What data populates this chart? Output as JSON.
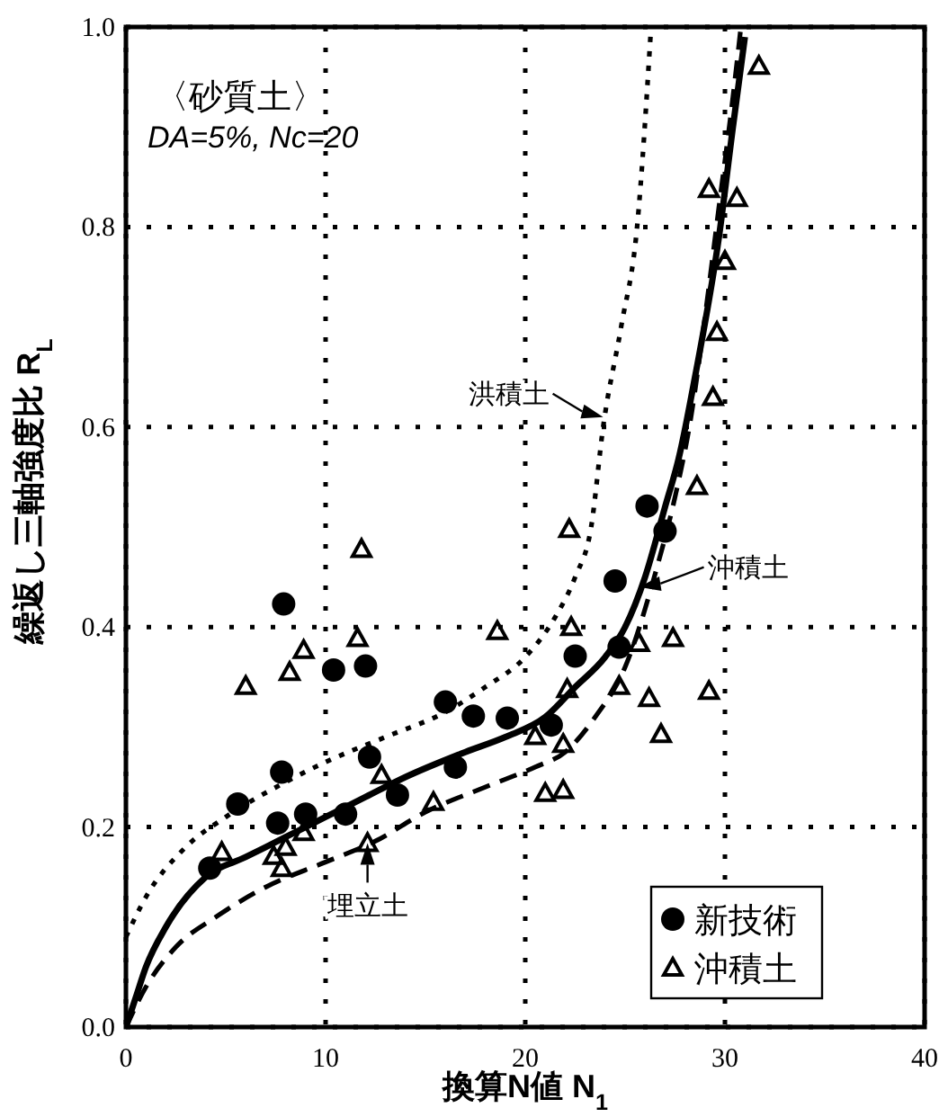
{
  "chart_data": {
    "type": "scatter",
    "xlabel": "換算N値 N$_{1}$",
    "ylabel": "繰返し三軸強度比 R$_{L}$",
    "xlim": [
      0,
      40
    ],
    "ylim": [
      0,
      1
    ],
    "xticks": [
      0,
      10,
      20,
      30,
      40
    ],
    "yticks": [
      {
        "value": 0,
        "label": "0.0"
      },
      {
        "value": 0.2,
        "label": "0.2"
      },
      {
        "value": 0.4,
        "label": "0.4"
      },
      {
        "value": 0.6,
        "label": "0.6"
      },
      {
        "value": 0.8,
        "label": "0.8"
      },
      {
        "value": 1,
        "label": "1.0"
      }
    ],
    "grid": true,
    "legend": "bottom right",
    "annotations": [
      "〈砂質土〉",
      "DA=5%, Nc=20",
      {
        "text": "洪積土",
        "x": 23.9,
        "y": 0.61
      },
      {
        "text": "沖積土",
        "x": 25.7,
        "y": 0.44
      },
      {
        "text": "埋立土",
        "x": 12.1,
        "y": 0.184
      }
    ],
    "series": [
      {
        "name": "新技術",
        "marker": "circle",
        "color": "#000000",
        "x": [
          4.2,
          5.6,
          7.8,
          7.9,
          7.6,
          9.0,
          10.4,
          12.0,
          16.0,
          12.2,
          13.6,
          11.0,
          16.5,
          17.4,
          19.1,
          21.3,
          22.5,
          24.7,
          24.5,
          26.1,
          27.0
        ],
        "values": [
          0.159,
          0.223,
          0.255,
          0.423,
          0.204,
          0.213,
          0.357,
          0.361,
          0.325,
          0.27,
          0.232,
          0.213,
          0.26,
          0.311,
          0.309,
          0.302,
          0.371,
          0.38,
          0.446,
          0.521,
          0.496
        ]
      },
      {
        "name": "沖積土",
        "marker": "triangle",
        "color": "#000000",
        "x": [
          11.8,
          11.6,
          8.9,
          8.2,
          6.0,
          12.8,
          4.8,
          7.4,
          7.8,
          8.0,
          8.9,
          12.1,
          15.4,
          20.5,
          21.9,
          21.0,
          21.9,
          22.1,
          24.7,
          22.3,
          18.6,
          22.2,
          25.7,
          27.4,
          26.2,
          26.8,
          29.2,
          28.6,
          31.7,
          29.2,
          30.6,
          30.0,
          29.6,
          29.4
        ],
        "values": [
          0.478,
          0.389,
          0.377,
          0.355,
          0.341,
          0.252,
          0.175,
          0.171,
          0.159,
          0.18,
          0.195,
          0.184,
          0.225,
          0.291,
          0.283,
          0.234,
          0.237,
          0.338,
          0.341,
          0.4,
          0.396,
          0.498,
          0.384,
          0.389,
          0.329,
          0.293,
          0.336,
          0.541,
          0.961,
          0.838,
          0.829,
          0.766,
          0.695,
          0.63
        ]
      },
      {
        "type": "line",
        "line_style": "solid",
        "marker": "none",
        "color": "#000000",
        "x": [
          0,
          0.5,
          1,
          2,
          4,
          6,
          8,
          10,
          12,
          14,
          17,
          19,
          21,
          22.5,
          24,
          25,
          26,
          27,
          27.7,
          28.5,
          29.7,
          30.4,
          31
        ],
        "values": [
          0,
          0.03,
          0.06,
          0.1,
          0.15,
          0.17,
          0.19,
          0.21,
          0.23,
          0.25,
          0.275,
          0.29,
          0.31,
          0.34,
          0.37,
          0.4,
          0.45,
          0.52,
          0.57,
          0.65,
          0.79,
          0.9,
          0.99
        ]
      },
      {
        "type": "line",
        "line_style": "dotted",
        "marker": "none",
        "color": "#000000",
        "x": [
          0,
          1,
          3,
          5,
          8,
          10,
          13,
          16,
          18,
          20,
          21.5,
          22.5,
          23.3,
          23.9,
          24.8,
          25.6,
          26.3
        ],
        "values": [
          0.09,
          0.13,
          0.18,
          0.21,
          0.245,
          0.265,
          0.29,
          0.315,
          0.34,
          0.37,
          0.41,
          0.45,
          0.5,
          0.6,
          0.7,
          0.8,
          1.0
        ]
      },
      {
        "type": "line",
        "line_style": "dashed",
        "marker": "none",
        "color": "#000000",
        "x": [
          0,
          1,
          2.5,
          4.5,
          7,
          10,
          12.5,
          15,
          18,
          20.5,
          22,
          23.5,
          25,
          26.6,
          27.5,
          28.3,
          29,
          29.7,
          30.4,
          30.8
        ],
        "values": [
          0,
          0.04,
          0.08,
          0.11,
          0.14,
          0.165,
          0.186,
          0.215,
          0.24,
          0.26,
          0.275,
          0.31,
          0.36,
          0.46,
          0.53,
          0.61,
          0.71,
          0.82,
          0.93,
          1.0
        ]
      }
    ]
  }
}
